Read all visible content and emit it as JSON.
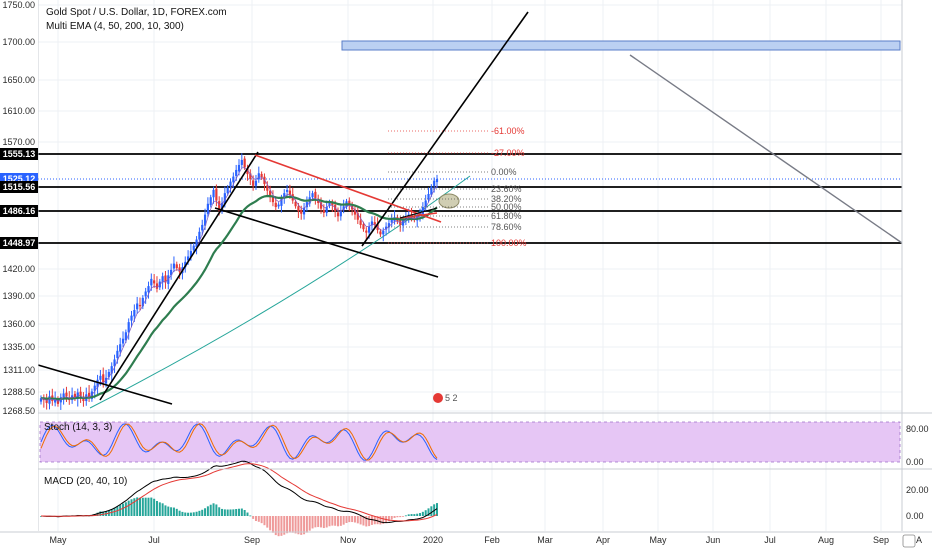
{
  "chart_data": {
    "type": "candlestick",
    "title": "Gold Spot / U.S. Dollar, 1D, FOREX.com",
    "subtitle": "Multi EMA (4, 50, 200, 10, 300)",
    "x_ticks": [
      "May",
      "Jul",
      "Sep",
      "Nov",
      "2020",
      "Feb",
      "Mar",
      "Apr",
      "May",
      "Jun",
      "Jul",
      "Aug",
      "Sep"
    ],
    "y_ticks": [
      "1750.00",
      "1700.00",
      "1650.00",
      "1610.00",
      "1570.00",
      "1420.00",
      "1390.00",
      "1360.00",
      "1335.00",
      "1311.00",
      "1288.50",
      "1268.50"
    ],
    "price_tags": [
      {
        "value": 1555.13,
        "label": "1555.13",
        "color": "#000000"
      },
      {
        "value": 1525.12,
        "label": "1525.12",
        "color": "#2962ff"
      },
      {
        "value": 1515.56,
        "label": "1515.56",
        "color": "#000000"
      },
      {
        "value": 1486.16,
        "label": "1486.16",
        "color": "#000000"
      },
      {
        "value": 1448.97,
        "label": "1448.97",
        "color": "#000000"
      }
    ],
    "horizontal_levels": [
      1555.13,
      1515.56,
      1486.16,
      1448.97
    ],
    "fib_levels": [
      {
        "label": "-61.00%",
        "color": "#e53935"
      },
      {
        "label": "-27.00%",
        "color": "#e53935"
      },
      {
        "label": "0.00%",
        "color": "#555555"
      },
      {
        "label": "23.60%",
        "color": "#555555"
      },
      {
        "label": "38.20%",
        "color": "#555555"
      },
      {
        "label": "50.00%",
        "color": "#555555"
      },
      {
        "label": "61.80%",
        "color": "#555555"
      },
      {
        "label": "78.60%",
        "color": "#555555"
      },
      {
        "label": "100.00%",
        "color": "#e53935"
      }
    ],
    "candles_close": [
      1282,
      1280,
      1277,
      1284,
      1279,
      1281,
      1276,
      1283,
      1287,
      1284,
      1280,
      1285,
      1282,
      1288,
      1284,
      1279,
      1286,
      1282,
      1289,
      1295,
      1301,
      1305,
      1298,
      1303,
      1309,
      1315,
      1322,
      1331,
      1338,
      1344,
      1351,
      1362,
      1369,
      1375,
      1382,
      1379,
      1388,
      1395,
      1401,
      1409,
      1404,
      1398,
      1406,
      1412,
      1405,
      1413,
      1419,
      1426,
      1421,
      1417,
      1422,
      1428,
      1434,
      1440,
      1446,
      1453,
      1462,
      1470,
      1482,
      1495,
      1503,
      1512,
      1499,
      1487,
      1496,
      1508,
      1515,
      1522,
      1528,
      1536,
      1542,
      1548,
      1539,
      1531,
      1525,
      1517,
      1523,
      1532,
      1527,
      1519,
      1511,
      1503,
      1497,
      1491,
      1494,
      1502,
      1508,
      1512,
      1506,
      1499,
      1492,
      1486,
      1483,
      1490,
      1497,
      1503,
      1508,
      1502,
      1496,
      1489,
      1484,
      1491,
      1497,
      1493,
      1486,
      1480,
      1486,
      1492,
      1498,
      1494,
      1488,
      1482,
      1476,
      1470,
      1465,
      1461,
      1468,
      1474,
      1470,
      1464,
      1459,
      1463,
      1468,
      1472,
      1476,
      1479,
      1474,
      1470,
      1475,
      1479,
      1482,
      1478,
      1476,
      1480,
      1484,
      1491,
      1499,
      1507,
      1516,
      1523,
      1525
    ],
    "stoch": {
      "label": "Stoch (14, 3, 3)",
      "ticks": [
        "80.00",
        "0.00"
      ],
      "levels": [
        80,
        20
      ]
    },
    "macd": {
      "label": "MACD (20, 40, 10)",
      "ticks": [
        "20.00",
        "0.00"
      ]
    },
    "grid": true,
    "marker_badge": "5  2",
    "colors": {
      "up": "#2962ff",
      "down": "#e53935",
      "ema_dark": "#2e7d4f",
      "ema_light": "#26a69a",
      "stoch_bg": "#e6c6f5",
      "trend_red": "#e53935",
      "trend_black": "#000000",
      "trend_gray": "#787b86",
      "box_fill": "#bbd0f2",
      "box_stroke": "#5a7ec8"
    }
  }
}
